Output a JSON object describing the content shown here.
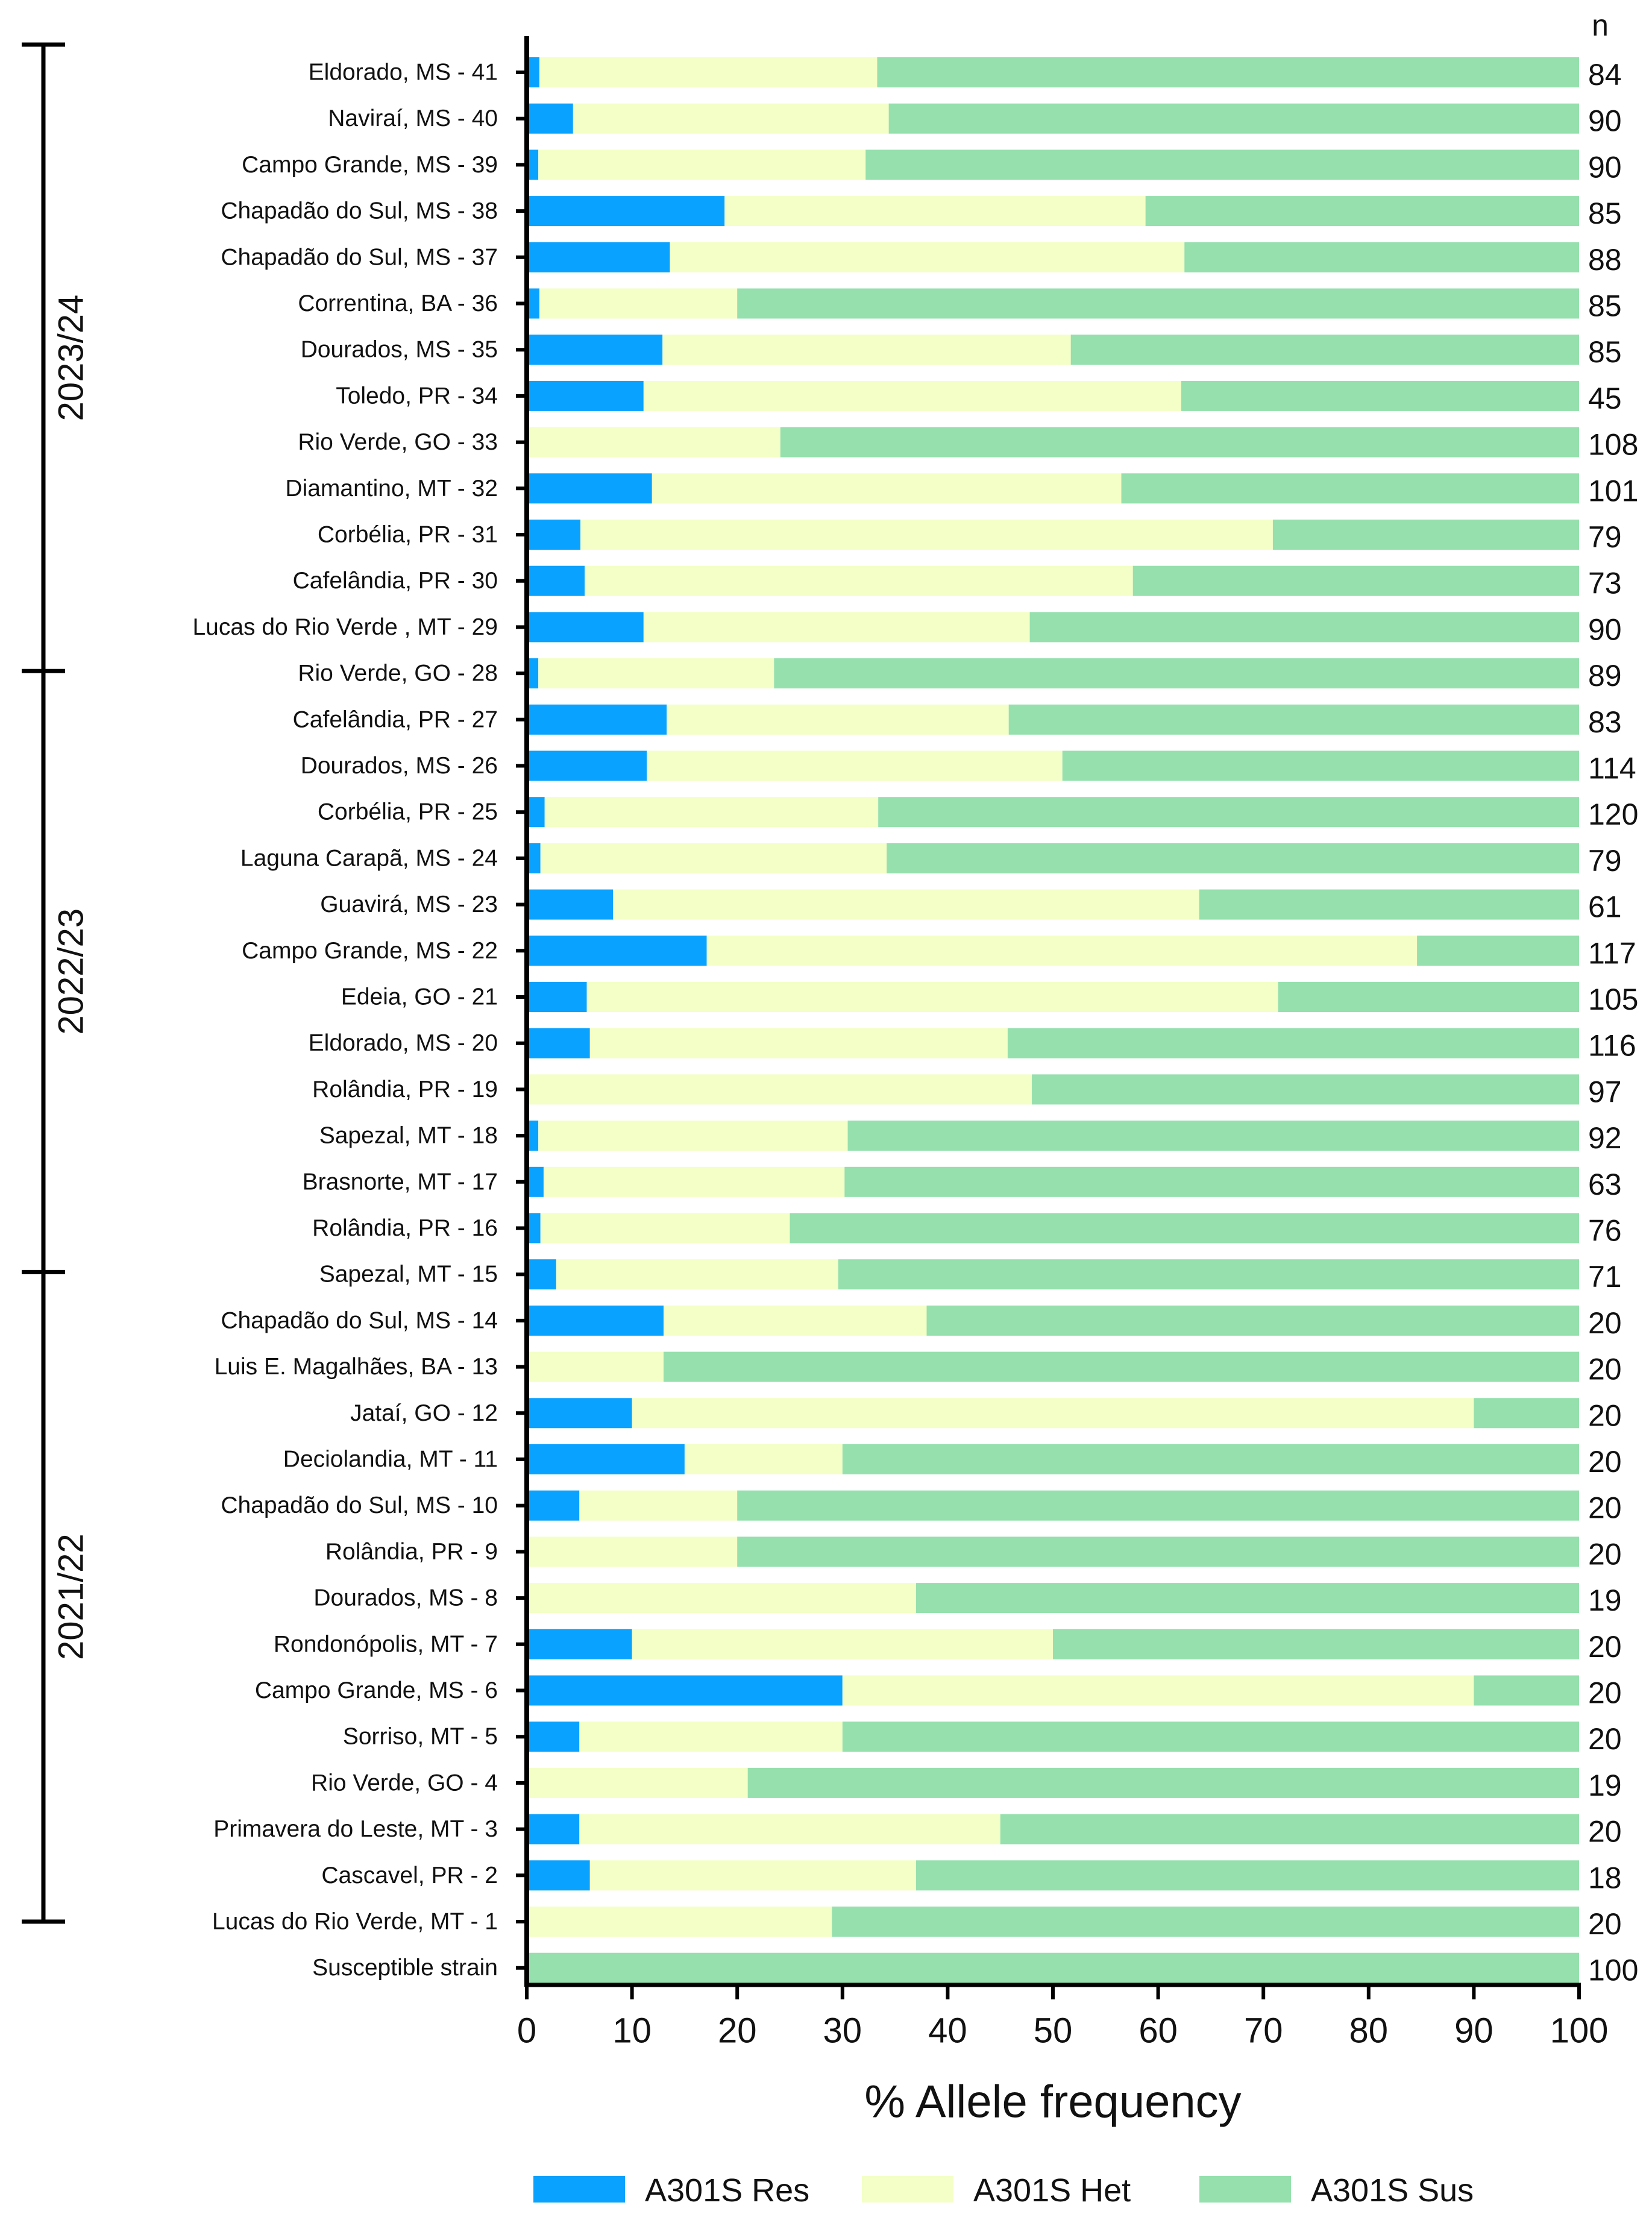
{
  "chart_data": {
    "type": "bar",
    "orientation": "horizontal",
    "stacked": true,
    "xlabel": "% Allele frequency",
    "xlim": [
      0,
      100
    ],
    "xticks": [
      0,
      10,
      20,
      30,
      40,
      50,
      60,
      70,
      80,
      90,
      100
    ],
    "n_header": "n",
    "categories": [
      "Eldorado, MS - 41",
      "Naviraí, MS - 40",
      "Campo Grande, MS - 39",
      "Chapadão do Sul, MS - 38",
      "Chapadão do Sul, MS - 37",
      "Correntina, BA - 36",
      "Dourados, MS - 35",
      "Toledo, PR - 34",
      "Rio Verde, GO - 33",
      "Diamantino, MT - 32",
      "Corbélia, PR - 31",
      "Cafelândia, PR - 30",
      "Lucas do Rio Verde , MT - 29",
      "Rio Verde, GO - 28",
      "Cafelândia, PR - 27",
      "Dourados, MS - 26",
      "Corbélia, PR - 25",
      "Laguna Carapã, MS - 24",
      "Guavirá, MS - 23",
      "Campo Grande, MS - 22",
      "Edeia, GO - 21",
      "Eldorado, MS - 20",
      "Rolândia, PR - 19",
      "Sapezal, MT - 18",
      "Brasnorte, MT - 17",
      "Rolândia, PR - 16",
      "Sapezal, MT - 15",
      "Chapadão do Sul, MS - 14",
      "Luis E. Magalhães, BA - 13",
      "Jataí, GO - 12",
      "Deciolandia, MT - 11",
      "Chapadão do Sul, MS - 10",
      "Rolândia, PR - 9",
      "Dourados, MS - 8",
      "Rondonópolis, MT - 7",
      "Campo Grande, MS - 6",
      "Sorriso, MT - 5",
      "Rio Verde, GO - 4",
      "Primavera do Leste, MT - 3",
      "Cascavel, PR - 2",
      "Lucas do Rio Verde, MT - 1",
      "Susceptible strain"
    ],
    "n": [
      84,
      90,
      90,
      85,
      88,
      85,
      85,
      45,
      108,
      101,
      79,
      73,
      90,
      89,
      83,
      114,
      120,
      79,
      61,
      117,
      105,
      116,
      97,
      92,
      63,
      76,
      71,
      20,
      20,
      20,
      20,
      20,
      20,
      19,
      20,
      20,
      20,
      19,
      20,
      18,
      20,
      100
    ],
    "series": [
      {
        "name": "A301S Res",
        "color": "#0aa2ff",
        "values": [
          1.2,
          4.4,
          1.1,
          18.8,
          13.6,
          1.2,
          12.9,
          11.1,
          0,
          11.9,
          5.1,
          5.5,
          11.1,
          1.1,
          13.3,
          11.4,
          1.7,
          1.3,
          8.2,
          17.1,
          5.7,
          6.0,
          0,
          1.1,
          1.6,
          1.3,
          2.8,
          13,
          0,
          10,
          15,
          5,
          0,
          0,
          10,
          30,
          5,
          0,
          5,
          6,
          0,
          0
        ]
      },
      {
        "name": "A301S Het",
        "color": "#f3ffc6",
        "values": [
          32.1,
          30.0,
          31.1,
          40.0,
          48.9,
          18.8,
          38.8,
          51.1,
          24.1,
          44.6,
          65.8,
          52.1,
          36.7,
          22.4,
          32.5,
          39.5,
          31.7,
          32.9,
          55.7,
          67.5,
          65.7,
          39.7,
          48.0,
          29.4,
          28.6,
          23.7,
          26.8,
          25,
          13,
          80,
          15,
          15,
          20,
          37,
          40,
          60,
          25,
          21,
          40,
          31,
          29,
          0
        ]
      },
      {
        "name": "A301S Sus",
        "color": "#95e0ad",
        "values": [
          66.7,
          65.6,
          67.8,
          41.2,
          37.5,
          80.0,
          48.3,
          37.8,
          75.9,
          43.5,
          29.1,
          42.4,
          52.2,
          76.5,
          54.2,
          49.1,
          66.6,
          65.8,
          36.1,
          15.4,
          28.6,
          54.3,
          52.0,
          69.5,
          69.8,
          75.0,
          70.4,
          62,
          87,
          10,
          70,
          80,
          80,
          63,
          50,
          10,
          70,
          79,
          55,
          63,
          71,
          100
        ]
      }
    ],
    "seasons": [
      {
        "label": "2023/24",
        "from": "Eldorado, MS - 41",
        "to": "Lucas do Rio Verde , MT - 29"
      },
      {
        "label": "2022/23",
        "from": "Rio Verde, GO - 28",
        "to": "Rolândia, PR - 16"
      },
      {
        "label": "2021/22",
        "from": "Sapezal, MT - 15",
        "to": "Lucas do Rio Verde, MT - 1"
      }
    ],
    "legend_position": "bottom"
  }
}
